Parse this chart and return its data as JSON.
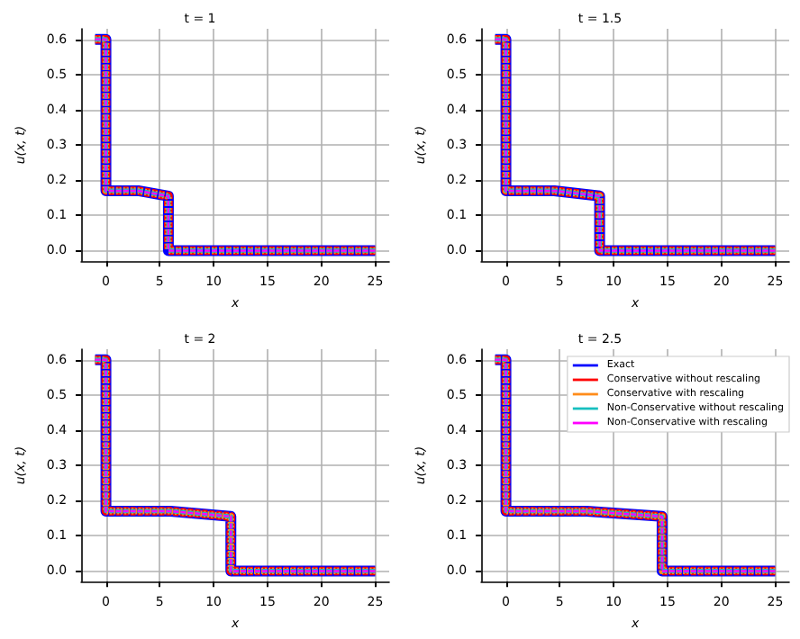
{
  "chart_data": [
    {
      "type": "line",
      "title": "t = 1",
      "xlabel": "x",
      "ylabel": "u(x, t)",
      "xlim": [
        -2.3,
        26.3
      ],
      "xticks": [
        0,
        5,
        10,
        15,
        20,
        25
      ],
      "ylim": [
        -0.03,
        0.63
      ],
      "yticks": [
        {
          "value": 0,
          "label": "0.0"
        },
        {
          "value": 0.1,
          "label": "0.1"
        },
        {
          "value": 0.2,
          "label": "0.2"
        },
        {
          "value": 0.3,
          "label": "0.3"
        },
        {
          "value": 0.4,
          "label": "0.4"
        },
        {
          "value": 0.5,
          "label": "0.5"
        },
        {
          "value": 0.6,
          "label": "0.6"
        }
      ],
      "grid": true,
      "legend": false,
      "x": [
        -1,
        0,
        0,
        3,
        5.8,
        5.8,
        25
      ],
      "series": [
        {
          "color": "#0000ff",
          "line_style": "solid",
          "values": [
            0.6,
            0.6,
            0.17,
            0.17,
            0.155,
            0,
            0
          ]
        },
        {
          "color": "#ff0000",
          "line_style": "dashed",
          "values": [
            0.6,
            0.6,
            0.17,
            0.17,
            0.155,
            0,
            0
          ]
        },
        {
          "color": "#ff8c1a",
          "line_style": "dotted",
          "values": [
            0.6,
            0.6,
            0.17,
            0.17,
            0.155,
            0,
            0
          ]
        },
        {
          "color": "#17bfbf",
          "line_style": "dashed",
          "values": [
            0.6,
            0.6,
            0.17,
            0.17,
            0.155,
            0,
            0
          ]
        },
        {
          "color": "#ff00ff",
          "line_style": "dashed",
          "values": [
            0.6,
            0.6,
            0.17,
            0.17,
            0.155,
            0,
            0
          ]
        }
      ]
    },
    {
      "type": "line",
      "title": "t = 1.5",
      "xlabel": "x",
      "ylabel": "u(x, t)",
      "xlim": [
        -2.3,
        26.3
      ],
      "xticks": [
        0,
        5,
        10,
        15,
        20,
        25
      ],
      "ylim": [
        -0.03,
        0.63
      ],
      "yticks": [
        {
          "value": 0,
          "label": "0.0"
        },
        {
          "value": 0.1,
          "label": "0.1"
        },
        {
          "value": 0.2,
          "label": "0.2"
        },
        {
          "value": 0.3,
          "label": "0.3"
        },
        {
          "value": 0.4,
          "label": "0.4"
        },
        {
          "value": 0.5,
          "label": "0.5"
        },
        {
          "value": 0.6,
          "label": "0.6"
        }
      ],
      "grid": true,
      "legend": false,
      "x": [
        -1,
        0,
        0,
        4.5,
        8.7,
        8.7,
        25
      ],
      "series": [
        {
          "color": "#0000ff",
          "line_style": "solid",
          "values": [
            0.6,
            0.6,
            0.17,
            0.17,
            0.155,
            0,
            0
          ]
        },
        {
          "color": "#ff0000",
          "line_style": "dashed",
          "values": [
            0.6,
            0.6,
            0.17,
            0.17,
            0.155,
            0,
            0
          ]
        },
        {
          "color": "#ff8c1a",
          "line_style": "dotted",
          "values": [
            0.6,
            0.6,
            0.17,
            0.17,
            0.155,
            0,
            0
          ]
        },
        {
          "color": "#17bfbf",
          "line_style": "dashed",
          "values": [
            0.6,
            0.6,
            0.17,
            0.17,
            0.155,
            0,
            0
          ]
        },
        {
          "color": "#ff00ff",
          "line_style": "dashed",
          "values": [
            0.6,
            0.6,
            0.17,
            0.17,
            0.155,
            0,
            0
          ]
        }
      ]
    },
    {
      "type": "line",
      "title": "t = 2",
      "xlabel": "x",
      "ylabel": "u(x, t)",
      "xlim": [
        -2.3,
        26.3
      ],
      "xticks": [
        0,
        5,
        10,
        15,
        20,
        25
      ],
      "ylim": [
        -0.03,
        0.63
      ],
      "yticks": [
        {
          "value": 0,
          "label": "0.0"
        },
        {
          "value": 0.1,
          "label": "0.1"
        },
        {
          "value": 0.2,
          "label": "0.2"
        },
        {
          "value": 0.3,
          "label": "0.3"
        },
        {
          "value": 0.4,
          "label": "0.4"
        },
        {
          "value": 0.5,
          "label": "0.5"
        },
        {
          "value": 0.6,
          "label": "0.6"
        }
      ],
      "grid": true,
      "legend": false,
      "x": [
        -1,
        0,
        0,
        6,
        11.6,
        11.6,
        25
      ],
      "series": [
        {
          "color": "#0000ff",
          "line_style": "solid",
          "values": [
            0.6,
            0.6,
            0.17,
            0.17,
            0.155,
            0,
            0
          ]
        },
        {
          "color": "#ff0000",
          "line_style": "dashed",
          "values": [
            0.6,
            0.6,
            0.17,
            0.17,
            0.155,
            0,
            0
          ]
        },
        {
          "color": "#ff8c1a",
          "line_style": "dotted",
          "values": [
            0.6,
            0.6,
            0.17,
            0.17,
            0.155,
            0,
            0
          ]
        },
        {
          "color": "#17bfbf",
          "line_style": "dashed",
          "values": [
            0.6,
            0.6,
            0.17,
            0.17,
            0.155,
            0,
            0
          ]
        },
        {
          "color": "#ff00ff",
          "line_style": "dashed",
          "values": [
            0.6,
            0.6,
            0.17,
            0.17,
            0.155,
            0,
            0
          ]
        }
      ]
    },
    {
      "type": "line",
      "title": "t = 2.5",
      "xlabel": "x",
      "ylabel": "u(x, t)",
      "xlim": [
        -2.3,
        26.3
      ],
      "xticks": [
        0,
        5,
        10,
        15,
        20,
        25
      ],
      "ylim": [
        -0.03,
        0.63
      ],
      "yticks": [
        {
          "value": 0,
          "label": "0.0"
        },
        {
          "value": 0.1,
          "label": "0.1"
        },
        {
          "value": 0.2,
          "label": "0.2"
        },
        {
          "value": 0.3,
          "label": "0.3"
        },
        {
          "value": 0.4,
          "label": "0.4"
        },
        {
          "value": 0.5,
          "label": "0.5"
        },
        {
          "value": 0.6,
          "label": "0.6"
        }
      ],
      "grid": true,
      "legend": "top right",
      "x": [
        -1,
        0,
        0,
        7.5,
        14.5,
        14.5,
        25
      ],
      "series": [
        {
          "name": "Exact",
          "color": "#0000ff",
          "line_style": "solid",
          "values": [
            0.6,
            0.6,
            0.17,
            0.17,
            0.155,
            0,
            0
          ]
        },
        {
          "name": "Conservative without rescaling",
          "color": "#ff0000",
          "line_style": "dashed",
          "values": [
            0.6,
            0.6,
            0.17,
            0.17,
            0.155,
            0,
            0
          ]
        },
        {
          "name": "Conservative with rescaling",
          "color": "#ff8c1a",
          "line_style": "dotted",
          "values": [
            0.6,
            0.6,
            0.17,
            0.17,
            0.155,
            0,
            0
          ]
        },
        {
          "name": "Non-Conservative without rescaling",
          "color": "#17bfbf",
          "line_style": "dashed",
          "values": [
            0.6,
            0.6,
            0.17,
            0.17,
            0.155,
            0,
            0
          ]
        },
        {
          "name": "Non-Conservative with rescaling",
          "color": "#ff00ff",
          "line_style": "dashed",
          "values": [
            0.6,
            0.6,
            0.17,
            0.17,
            0.155,
            0,
            0
          ]
        }
      ]
    }
  ]
}
